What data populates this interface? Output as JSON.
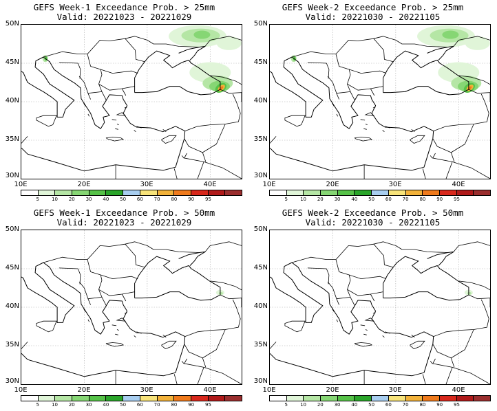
{
  "panels": [
    {
      "title": "GEFS Week-1 Exceedance Prob. > 25mm",
      "valid": "Valid: 20221023 - 20221029",
      "heavy": true
    },
    {
      "title": "GEFS Week-2 Exceedance Prob. > 25mm",
      "valid": "Valid: 20221030 - 20221105",
      "heavy": true
    },
    {
      "title": "GEFS Week-1 Exceedance Prob. > 50mm",
      "valid": "Valid: 20221023 - 20221029",
      "heavy": false
    },
    {
      "title": "GEFS Week-2 Exceedance Prob. > 50mm",
      "valid": "Valid: 20221030 - 20221105",
      "heavy": false
    }
  ],
  "lat_labels": [
    "50N",
    "45N",
    "40N",
    "35N",
    "30N"
  ],
  "lon_labels": [
    "10E",
    "20E",
    "30E",
    "40E"
  ],
  "colorbar": {
    "labels": [
      "5",
      "10",
      "20",
      "30",
      "40",
      "50",
      "60",
      "70",
      "80",
      "90",
      "95"
    ],
    "colors": [
      "#ffffff",
      "#e0f5d8",
      "#b5e6a5",
      "#86d674",
      "#56c248",
      "#2aa52a",
      "#a8cef0",
      "#f7e37a",
      "#f2b23a",
      "#ef7a1c",
      "#d8281c",
      "#b01a1a",
      "#9a2e2e"
    ]
  }
}
